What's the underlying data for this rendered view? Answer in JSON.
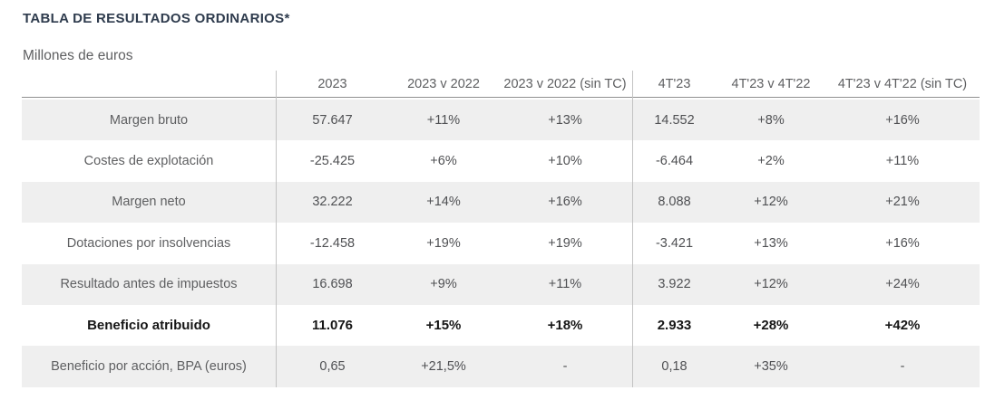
{
  "chart_data": {
    "type": "table",
    "title": "TABLA DE RESULTADOS ORDINARIOS*",
    "units_label": "Millones de euros",
    "columns": [
      "2023",
      "2023 v 2022",
      "2023 v 2022 (sin TC)",
      "4T'23",
      "4T'23 v 4T'22",
      "4T'23 v 4T'22 (sin TC)"
    ],
    "rows": [
      {
        "label": "Margen bruto",
        "values": [
          "57.647",
          "+11%",
          "+13%",
          "14.552",
          "+8%",
          "+16%"
        ],
        "emphasis": false
      },
      {
        "label": "Costes de explotación",
        "values": [
          "-25.425",
          "+6%",
          "+10%",
          "-6.464",
          "+2%",
          "+11%"
        ],
        "emphasis": false
      },
      {
        "label": "Margen neto",
        "values": [
          "32.222",
          "+14%",
          "+16%",
          "8.088",
          "+12%",
          "+21%"
        ],
        "emphasis": false
      },
      {
        "label": "Dotaciones por insolvencias",
        "values": [
          "-12.458",
          "+19%",
          "+19%",
          "-3.421",
          "+13%",
          "+16%"
        ],
        "emphasis": false
      },
      {
        "label": "Resultado antes de impuestos",
        "values": [
          "16.698",
          "+9%",
          "+11%",
          "3.922",
          "+12%",
          "+24%"
        ],
        "emphasis": false
      },
      {
        "label": "Beneficio atribuido",
        "values": [
          "11.076",
          "+15%",
          "+18%",
          "2.933",
          "+28%",
          "+42%"
        ],
        "emphasis": true
      },
      {
        "label": "Beneficio por acción, BPA (euros)",
        "values": [
          "0,65",
          "+21,5%",
          "-",
          "0,18",
          "+35%",
          "-"
        ],
        "emphasis": false
      }
    ]
  },
  "colors": {
    "title_text": "#2e3b4d",
    "body_text": "#5e5f61",
    "value_text": "#4f5053",
    "bold_text": "#161616",
    "row_stripe": "#efefef",
    "divider": "#c3c3c3",
    "header_rule": "#8f8f8f"
  }
}
